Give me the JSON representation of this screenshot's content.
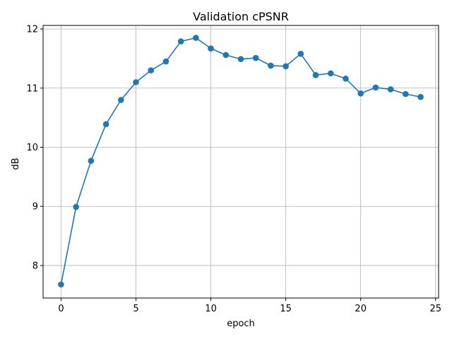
{
  "chart_data": {
    "type": "line",
    "title": "Validation cPSNR",
    "xlabel": "epoch",
    "ylabel": "dB",
    "xlim": [
      -1.2,
      25.2
    ],
    "ylim": [
      7.45,
      12.06
    ],
    "xticks": [
      0,
      5,
      10,
      15,
      20,
      25
    ],
    "yticks": [
      8,
      9,
      10,
      11,
      12
    ],
    "grid": true,
    "series": [
      {
        "color": "#1f77b4",
        "marker": "circle",
        "x": [
          0,
          1,
          2,
          3,
          4,
          5,
          6,
          7,
          8,
          9,
          10,
          11,
          12,
          13,
          14,
          15,
          16,
          17,
          18,
          19,
          20,
          21,
          22,
          23,
          24
        ],
        "y": [
          7.68,
          8.99,
          9.77,
          10.39,
          10.8,
          11.1,
          11.3,
          11.45,
          11.79,
          11.85,
          11.67,
          11.56,
          11.49,
          11.51,
          11.38,
          11.37,
          11.58,
          11.22,
          11.25,
          11.16,
          10.91,
          11.01,
          10.98,
          10.9,
          10.85
        ]
      }
    ]
  }
}
